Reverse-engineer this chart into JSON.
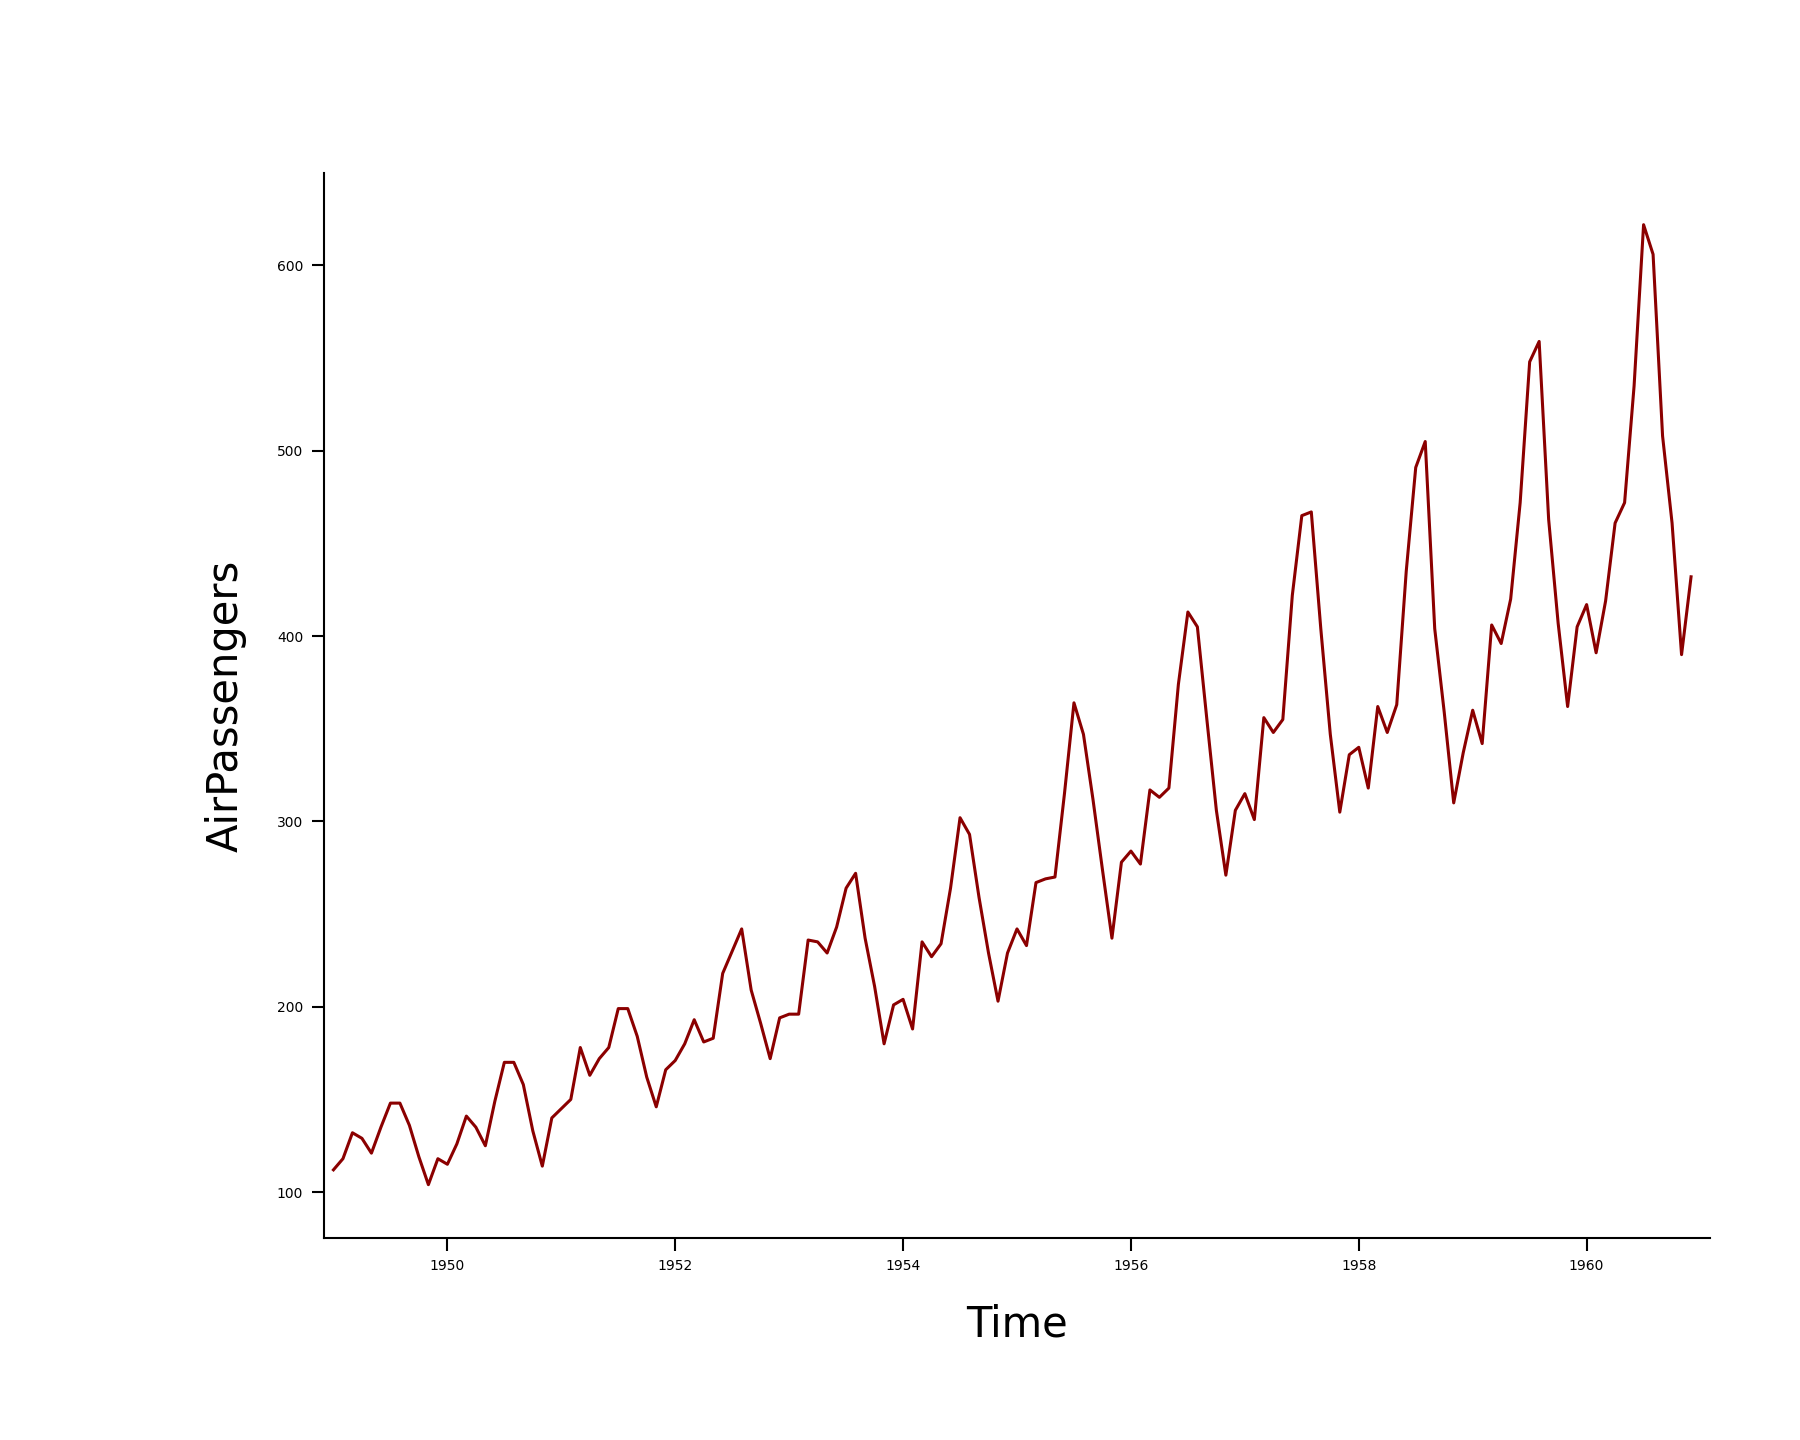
{
  "title": "",
  "xlabel": "Time",
  "ylabel": "AirPassengers",
  "line_color": "#8B0000",
  "line_width": 2.2,
  "background_color": "#ffffff",
  "ylim": [
    75,
    650
  ],
  "xlim": [
    1948.917,
    1961.083
  ],
  "yticks": [
    100,
    200,
    300,
    400,
    500,
    600
  ],
  "xticks": [
    1950,
    1952,
    1954,
    1956,
    1958,
    1960
  ],
  "passengers": [
    112,
    118,
    132,
    129,
    121,
    135,
    148,
    148,
    136,
    119,
    104,
    118,
    115,
    126,
    141,
    135,
    125,
    149,
    170,
    170,
    158,
    133,
    114,
    140,
    145,
    150,
    178,
    163,
    172,
    178,
    199,
    199,
    184,
    162,
    146,
    166,
    171,
    180,
    193,
    181,
    183,
    218,
    230,
    242,
    209,
    191,
    172,
    194,
    196,
    196,
    236,
    235,
    229,
    243,
    264,
    272,
    237,
    211,
    180,
    201,
    204,
    188,
    235,
    227,
    234,
    264,
    302,
    293,
    259,
    229,
    203,
    229,
    242,
    233,
    267,
    269,
    270,
    315,
    364,
    347,
    312,
    274,
    237,
    278,
    284,
    277,
    317,
    313,
    318,
    374,
    413,
    405,
    355,
    306,
    271,
    306,
    315,
    301,
    356,
    348,
    355,
    422,
    465,
    467,
    404,
    347,
    305,
    336,
    340,
    318,
    362,
    348,
    363,
    435,
    491,
    505,
    404,
    359,
    310,
    337,
    360,
    342,
    406,
    396,
    420,
    472,
    548,
    559,
    463,
    407,
    362,
    405,
    417,
    391,
    419,
    461,
    472,
    535,
    622,
    606,
    508,
    461,
    390,
    432
  ],
  "start_year": 1949,
  "start_month": 1,
  "label_fontsize": 30,
  "tick_fontsize": 26
}
